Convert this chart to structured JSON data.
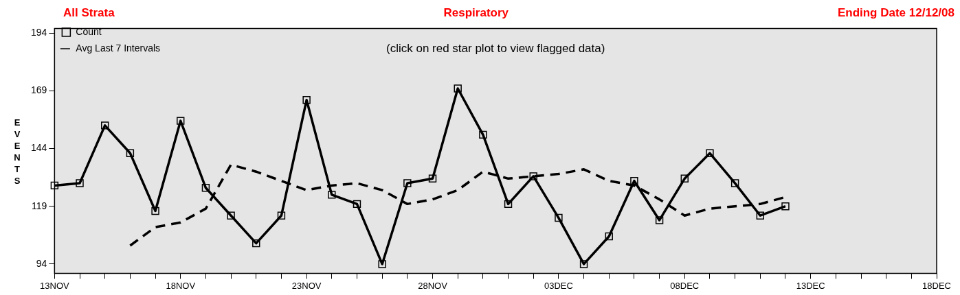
{
  "chart_data": {
    "type": "line",
    "title": "Respiratory",
    "ylabel": "EVENTS",
    "annotations": [
      "All Strata",
      "Ending Date 12/12/08",
      "(click on red star plot to view flagged data)"
    ],
    "categories": [
      "13NOV",
      null,
      null,
      null,
      null,
      "18NOV",
      null,
      null,
      null,
      null,
      "23NOV",
      null,
      null,
      null,
      null,
      "28NOV",
      null,
      null,
      null,
      null,
      "03DEC",
      null,
      null,
      null,
      null,
      "08DEC",
      null,
      null,
      null,
      null,
      "13DEC",
      null,
      null,
      null,
      null,
      "18DEC"
    ],
    "series": [
      {
        "name": "Count",
        "color": "#000000",
        "type": "line",
        "marker": "square",
        "line_style": "solid",
        "values": [
          128,
          129,
          154,
          142,
          117,
          156,
          127,
          115,
          103,
          115,
          165,
          124,
          120,
          94,
          129,
          131,
          170,
          150,
          120,
          132,
          114,
          94,
          106,
          130,
          113,
          131,
          142,
          129,
          115,
          119,
          null,
          null,
          null,
          null,
          null,
          null
        ]
      },
      {
        "name": "Avg Last 7 Intervals",
        "color": "#000000",
        "type": "line",
        "marker": "none",
        "line_style": "dashed",
        "values": [
          null,
          null,
          null,
          102,
          110,
          112,
          118,
          137,
          134,
          130,
          126,
          128,
          129,
          126,
          120,
          122,
          126,
          134,
          131,
          132,
          133,
          135,
          130,
          128,
          122,
          115,
          118,
          119,
          120,
          123,
          null,
          null,
          null,
          null,
          null,
          null
        ]
      }
    ],
    "ylim": [
      90,
      196
    ],
    "yticks": [
      94,
      119,
      144,
      169,
      194
    ],
    "grid": false,
    "legend": "top left"
  }
}
